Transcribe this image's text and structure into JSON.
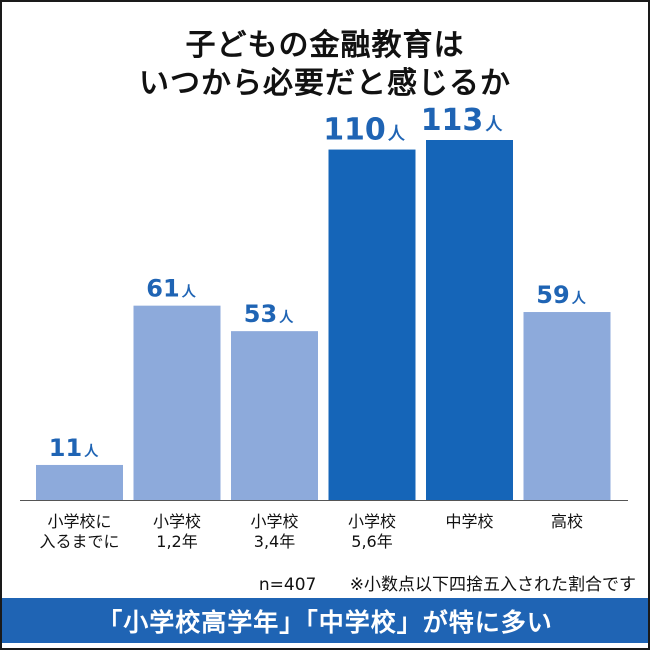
{
  "title_line1": "子どもの金融教育は",
  "title_line2": "いつから必要だと感じるか",
  "note_n": "n=407",
  "note_rounding": "※小数点以下四捨五入された割合です",
  "banner": "「小学校高学年」「中学校」が特に多い",
  "colors": {
    "light_bar": "#8daadb",
    "dark_bar": "#1565b8",
    "light_label": "#1f64b4",
    "dark_label": "#1f64b4",
    "banner": "#1f64b4"
  },
  "chart_data": {
    "type": "bar",
    "title": "子どもの金融教育は いつから必要だと感じるか",
    "categories": [
      [
        "小学校に",
        "入るまでに"
      ],
      [
        "小学校",
        "1,2年"
      ],
      [
        "小学校",
        "3,4年"
      ],
      [
        "小学校",
        "5,6年"
      ],
      [
        "中学校"
      ],
      [
        "高校"
      ]
    ],
    "values": [
      11,
      61,
      53,
      110,
      113,
      59
    ],
    "value_labels": [
      "11",
      "61",
      "53",
      "110",
      "113",
      "59"
    ],
    "unit": "人",
    "highlight": [
      false,
      false,
      false,
      true,
      true,
      false
    ],
    "ylim": [
      0,
      120
    ],
    "grid": false,
    "legend": "none"
  }
}
